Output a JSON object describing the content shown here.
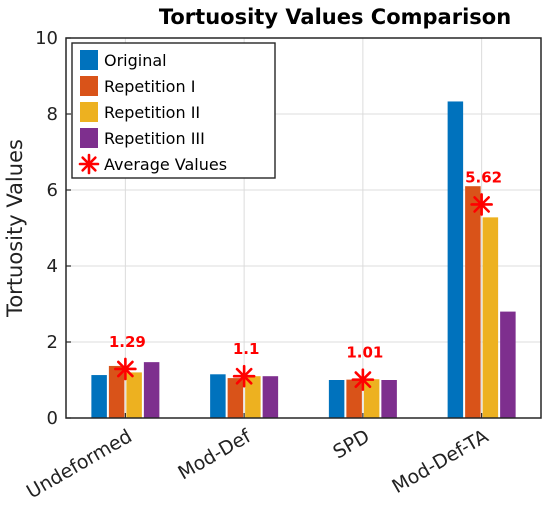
{
  "chart_data": {
    "type": "bar",
    "title": "Tortuosity Values Comparison",
    "xlabel": "",
    "ylabel": "Tortuosity Values",
    "ylim": [
      0,
      10
    ],
    "yticks": [
      0,
      2,
      4,
      6,
      8,
      10
    ],
    "grid": true,
    "legend_position": "top-left",
    "categories": [
      "Undeformed",
      "Mod-Def",
      "SPD",
      "Mod-Def-TA"
    ],
    "series": [
      {
        "name": "Original",
        "color": "#0072BD",
        "values": [
          1.13,
          1.15,
          1.0,
          8.33
        ]
      },
      {
        "name": "Repetition I",
        "color": "#D95319",
        "values": [
          1.37,
          1.05,
          1.01,
          6.1
        ]
      },
      {
        "name": "Repetition II",
        "color": "#EDB120",
        "values": [
          1.2,
          1.1,
          1.02,
          5.28
        ]
      },
      {
        "name": "Repetition III",
        "color": "#7E2F8E",
        "values": [
          1.47,
          1.1,
          1.0,
          2.8
        ]
      }
    ],
    "average": {
      "name": "Average Values",
      "color": "#FF0000",
      "values": [
        1.29,
        1.1,
        1.01,
        5.62
      ],
      "labels": [
        "1.29",
        "1.1",
        "1.01",
        "5.62"
      ]
    }
  }
}
